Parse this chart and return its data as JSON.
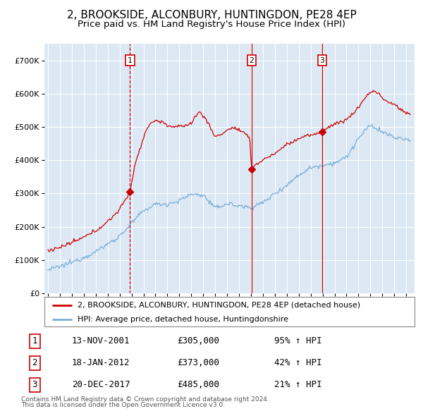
{
  "title": "2, BROOKSIDE, ALCONBURY, HUNTINGDON, PE28 4EP",
  "subtitle": "Price paid vs. HM Land Registry's House Price Index (HPI)",
  "title_fontsize": 11,
  "subtitle_fontsize": 9.5,
  "bg_color": "#dce9f5",
  "red_color": "#cc0000",
  "blue_color": "#7aaed6",
  "sale_years": [
    2001.872,
    2012.046,
    2017.958
  ],
  "sale_prices": [
    305000,
    373000,
    485000
  ],
  "sale_labels": [
    "1",
    "2",
    "3"
  ],
  "sale_date_str": [
    "13-NOV-2001",
    "18-JAN-2012",
    "20-DEC-2017"
  ],
  "sale_pct_str": [
    "95% ↑ HPI",
    "42% ↑ HPI",
    "21% ↑ HPI"
  ],
  "sale_price_str": [
    "£305,000",
    "£373,000",
    "£485,000"
  ],
  "ylim": [
    0,
    750000
  ],
  "yticks": [
    0,
    100000,
    200000,
    300000,
    400000,
    500000,
    600000,
    700000
  ],
  "ytick_labels": [
    "£0",
    "£100K",
    "£200K",
    "£300K",
    "£400K",
    "£500K",
    "£600K",
    "£700K"
  ],
  "xlim_left": 1994.7,
  "xlim_right": 2025.7,
  "footer_line1": "Contains HM Land Registry data © Crown copyright and database right 2024.",
  "footer_line2": "This data is licensed under the Open Government Licence v3.0.",
  "legend_line1": "2, BROOKSIDE, ALCONBURY, HUNTINGDON, PE28 4EP (detached house)",
  "legend_line2": "HPI: Average price, detached house, Huntingdonshire",
  "hpi_keypoints": {
    "1995.0": 70000,
    "1996.0": 80000,
    "1997.0": 93000,
    "1998.0": 108000,
    "1999.0": 125000,
    "2000.0": 148000,
    "2001.0": 172000,
    "2002.0": 210000,
    "2003.0": 248000,
    "2004.0": 268000,
    "2005.0": 268000,
    "2006.0": 278000,
    "2007.0": 298000,
    "2008.0": 295000,
    "2009.0": 255000,
    "2010.0": 270000,
    "2011.0": 262000,
    "2012.0": 258000,
    "2013.0": 272000,
    "2014.0": 300000,
    "2015.0": 325000,
    "2016.0": 355000,
    "2017.0": 378000,
    "2018.0": 385000,
    "2019.0": 392000,
    "2020.0": 408000,
    "2021.0": 465000,
    "2022.0": 505000,
    "2023.0": 485000,
    "2024.0": 468000,
    "2025.3": 460000
  },
  "red_keypoints": {
    "1995.0": 128000,
    "1996.0": 138000,
    "1997.0": 152000,
    "1998.0": 168000,
    "1999.0": 188000,
    "2000.0": 215000,
    "2001.0": 252000,
    "2001.87": 305000,
    "2002.3": 390000,
    "2002.8": 445000,
    "2003.2": 490000,
    "2003.6": 510000,
    "2004.0": 520000,
    "2004.5": 515000,
    "2005.0": 505000,
    "2005.5": 500000,
    "2006.0": 500000,
    "2006.5": 505000,
    "2007.0": 510000,
    "2007.3": 530000,
    "2007.7": 545000,
    "2008.0": 535000,
    "2008.5": 505000,
    "2009.0": 470000,
    "2009.5": 478000,
    "2010.0": 490000,
    "2010.5": 498000,
    "2011.0": 490000,
    "2011.5": 478000,
    "2011.9": 468000,
    "2012.046": 373000,
    "2012.3": 385000,
    "2012.8": 395000,
    "2013.3": 408000,
    "2013.8": 415000,
    "2014.3": 428000,
    "2015.0": 448000,
    "2015.5": 455000,
    "2016.0": 465000,
    "2016.5": 472000,
    "2017.0": 475000,
    "2017.5": 478000,
    "2017.958": 485000,
    "2018.1": 492000,
    "2018.5": 500000,
    "2019.0": 508000,
    "2019.5": 515000,
    "2020.0": 522000,
    "2020.5": 538000,
    "2021.0": 558000,
    "2021.3": 575000,
    "2021.6": 590000,
    "2021.9": 600000,
    "2022.2": 608000,
    "2022.5": 605000,
    "2022.8": 598000,
    "2023.0": 585000,
    "2023.3": 578000,
    "2023.6": 572000,
    "2024.0": 568000,
    "2024.3": 560000,
    "2024.6": 550000,
    "2025.0": 542000,
    "2025.3": 538000
  }
}
